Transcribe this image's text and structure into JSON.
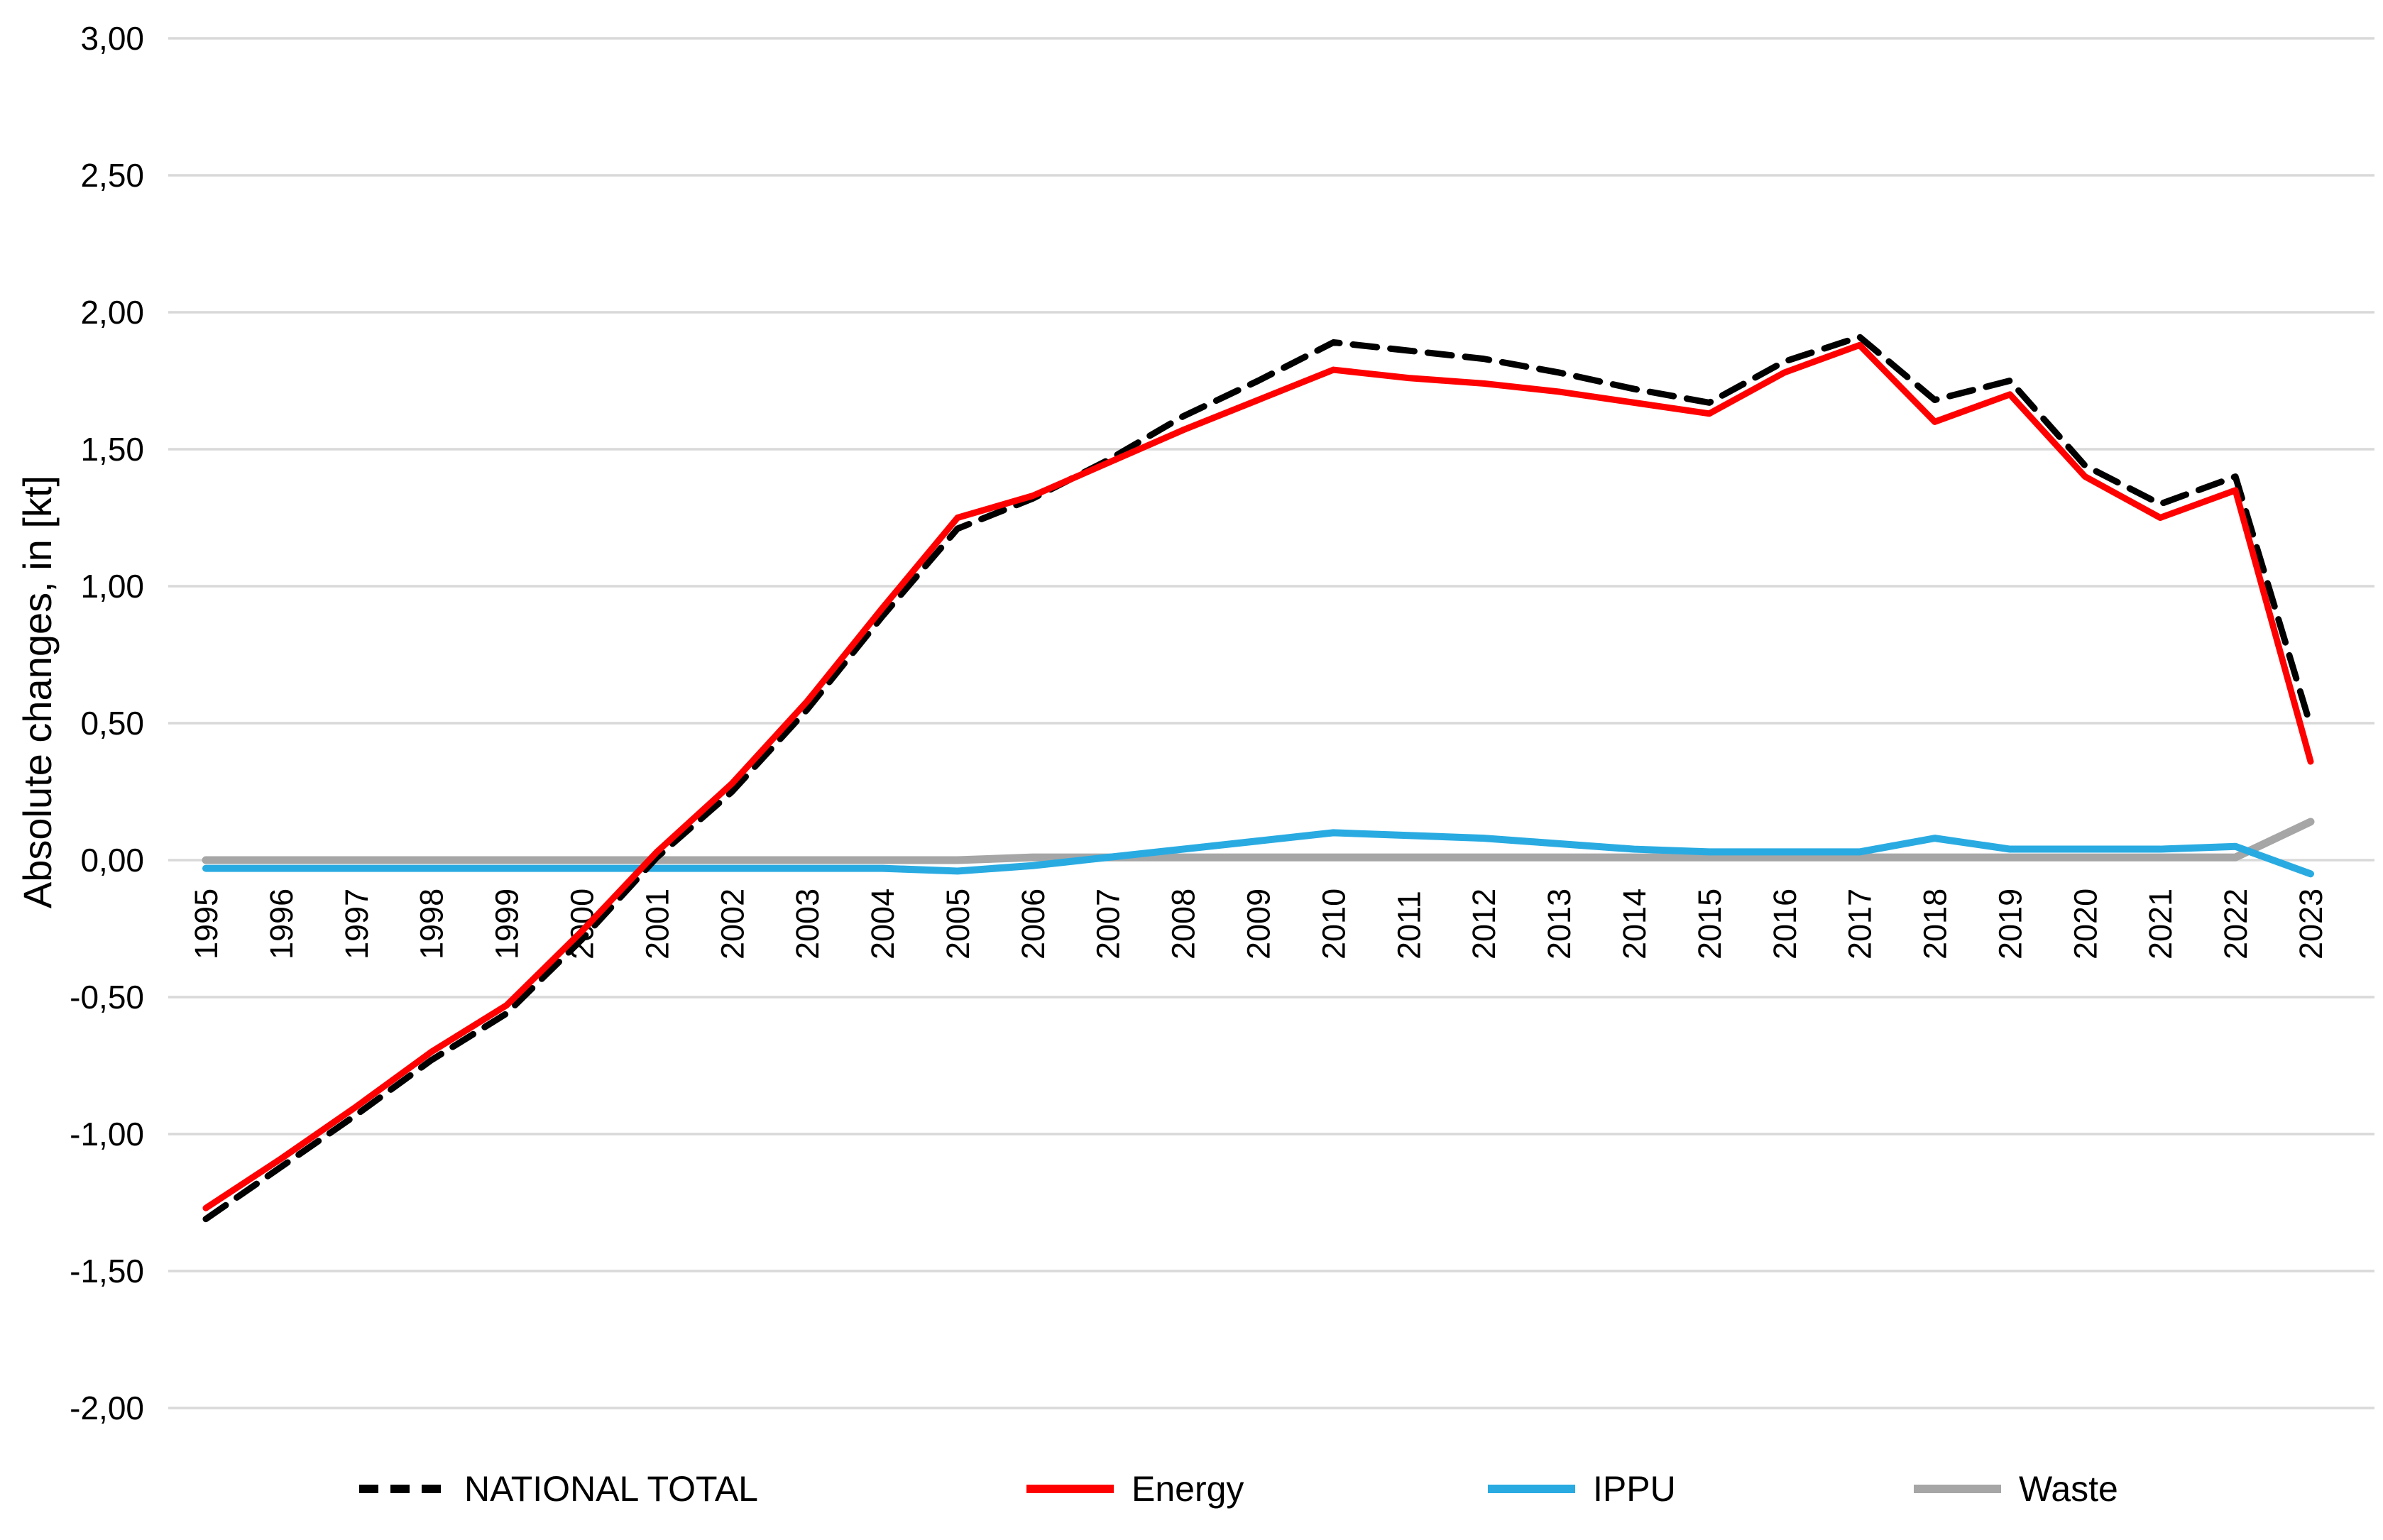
{
  "chart_data": {
    "type": "line",
    "title": "",
    "xlabel": "",
    "ylabel": "Absolute changes, in [kt]",
    "x": [
      "1995",
      "1996",
      "1997",
      "1998",
      "1999",
      "2000",
      "2001",
      "2002",
      "2003",
      "2004",
      "2005",
      "2006",
      "2007",
      "2008",
      "2009",
      "2010",
      "2011",
      "2012",
      "2013",
      "2014",
      "2015",
      "2016",
      "2017",
      "2018",
      "2019",
      "2020",
      "2021",
      "2022",
      "2023"
    ],
    "series": [
      {
        "name": "NATIONAL TOTAL",
        "color": "#000000",
        "style": "dashed",
        "values": [
          -1.31,
          -1.12,
          -0.93,
          -0.73,
          -0.56,
          -0.29,
          0.01,
          0.25,
          0.55,
          0.89,
          1.21,
          1.32,
          1.46,
          1.62,
          1.75,
          1.89,
          1.86,
          1.83,
          1.78,
          1.72,
          1.67,
          1.82,
          1.91,
          1.68,
          1.75,
          1.44,
          1.3,
          1.4,
          0.49
        ]
      },
      {
        "name": "Energy",
        "color": "#FF0000",
        "style": "solid",
        "values": [
          -1.27,
          -1.09,
          -0.9,
          -0.7,
          -0.53,
          -0.26,
          0.03,
          0.28,
          0.58,
          0.92,
          1.25,
          1.33,
          1.45,
          1.57,
          1.68,
          1.79,
          1.76,
          1.74,
          1.71,
          1.67,
          1.63,
          1.78,
          1.88,
          1.6,
          1.7,
          1.4,
          1.25,
          1.35,
          0.36
        ]
      },
      {
        "name": "IPPU",
        "color": "#29ABE2",
        "style": "solid",
        "values": [
          -0.03,
          -0.03,
          -0.03,
          -0.03,
          -0.03,
          -0.03,
          -0.03,
          -0.03,
          -0.03,
          -0.03,
          -0.04,
          -0.02,
          0.01,
          0.04,
          0.07,
          0.1,
          0.09,
          0.08,
          0.06,
          0.04,
          0.03,
          0.03,
          0.03,
          0.08,
          0.04,
          0.04,
          0.04,
          0.05,
          -0.05
        ]
      },
      {
        "name": "Waste",
        "color": "#A6A6A6",
        "style": "solid",
        "values": [
          0.0,
          0.0,
          0.0,
          0.0,
          0.0,
          0.0,
          0.0,
          0.0,
          0.0,
          0.0,
          0.0,
          0.01,
          0.01,
          0.01,
          0.01,
          0.01,
          0.01,
          0.01,
          0.01,
          0.01,
          0.01,
          0.01,
          0.01,
          0.01,
          0.01,
          0.01,
          0.01,
          0.01,
          0.14
        ]
      }
    ],
    "ylim": [
      -2.0,
      3.0
    ],
    "ytick_step": 0.5,
    "ytick_values": [
      3.0,
      2.5,
      2.0,
      1.5,
      1.0,
      0.5,
      0.0,
      -0.5,
      -1.0,
      -1.5,
      -2.0
    ],
    "ytick_labels": [
      "3,00",
      "2,50",
      "2,00",
      "1,50",
      "1,00",
      "0,50",
      "0,00",
      "-0,50",
      "-1,00",
      "-1,50",
      "-2,00"
    ],
    "grid": true,
    "legend_position": "bottom",
    "decimal_separator": ","
  }
}
